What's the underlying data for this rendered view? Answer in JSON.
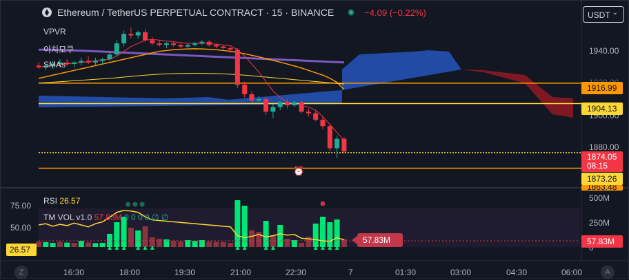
{
  "header": {
    "symbol_title": "Ethereum / TetherUS PERPETUAL CONTRACT · 15 · BINANCE",
    "change": "−4.09 (−0.22%)",
    "currency": "USDT"
  },
  "indicators": {
    "vpvr": "VPVR",
    "ichimoku": "이치모쿠",
    "smas": "SMAs"
  },
  "price_axis": {
    "ticks": [
      "1940.00",
      "1920.00",
      "1900.00",
      "1880.00"
    ],
    "tag_orange_top": "1916.99",
    "tag_yellow": "1904.13",
    "tag_last_price": "1874.05",
    "tag_countdown": "08:15",
    "tag_yellow_bottom": "1873.26",
    "tag_partial": "1863.48"
  },
  "rsi": {
    "label": "RSI",
    "value": "26.57",
    "axis_ticks": [
      "75.00",
      "50.00"
    ],
    "left_tag": "26.57"
  },
  "volume": {
    "label": "TM VOL v1.0",
    "value": "57.83M",
    "zeros": "0 0 0 0 ∅ ∅",
    "axis_ticks": [
      "500M",
      "250M",
      "0"
    ],
    "badge": "57.83M",
    "tag": "57.83M"
  },
  "time_axis": [
    "16:30",
    "18:00",
    "19:30",
    "21:00",
    "22:30",
    "7",
    "01:30",
    "03:00",
    "04:30",
    "06:00"
  ],
  "buttons": {
    "left": "Z",
    "right": "A"
  },
  "colors": {
    "up": "#22ab94",
    "down": "#f23645",
    "cloud_bull": "#2351b3",
    "cloud_bear": "#8b1a24",
    "sma_purple": "#7e57c2",
    "sma_orange": "#ff9800",
    "level_yellow": "#fdd835",
    "rsi_line": "#fdd835",
    "vol_up": "#00e676"
  },
  "chart_data": {
    "type": "candlestick",
    "xlabel": "",
    "ylabel": "",
    "ylim": [
      1852,
      1955
    ],
    "levels": [
      1916.99,
      1904.13,
      1873.26,
      1863.48
    ],
    "candles": [
      {
        "o": 1928,
        "h": 1930,
        "l": 1926,
        "c": 1927
      },
      {
        "o": 1927,
        "h": 1929,
        "l": 1925,
        "c": 1928
      },
      {
        "o": 1928,
        "h": 1931,
        "l": 1926,
        "c": 1929
      },
      {
        "o": 1929,
        "h": 1932,
        "l": 1927,
        "c": 1930
      },
      {
        "o": 1930,
        "h": 1932,
        "l": 1928,
        "c": 1929
      },
      {
        "o": 1929,
        "h": 1931,
        "l": 1927,
        "c": 1930
      },
      {
        "o": 1930,
        "h": 1933,
        "l": 1928,
        "c": 1931
      },
      {
        "o": 1931,
        "h": 1934,
        "l": 1929,
        "c": 1930
      },
      {
        "o": 1930,
        "h": 1933,
        "l": 1928,
        "c": 1931
      },
      {
        "o": 1931,
        "h": 1933,
        "l": 1929,
        "c": 1932
      },
      {
        "o": 1932,
        "h": 1936,
        "l": 1931,
        "c": 1935
      },
      {
        "o": 1935,
        "h": 1944,
        "l": 1934,
        "c": 1942
      },
      {
        "o": 1942,
        "h": 1950,
        "l": 1940,
        "c": 1948
      },
      {
        "o": 1948,
        "h": 1952,
        "l": 1945,
        "c": 1947
      },
      {
        "o": 1947,
        "h": 1950,
        "l": 1945,
        "c": 1949
      },
      {
        "o": 1949,
        "h": 1951,
        "l": 1943,
        "c": 1944
      },
      {
        "o": 1944,
        "h": 1946,
        "l": 1941,
        "c": 1942
      },
      {
        "o": 1942,
        "h": 1944,
        "l": 1940,
        "c": 1941
      },
      {
        "o": 1941,
        "h": 1943,
        "l": 1939,
        "c": 1942
      },
      {
        "o": 1942,
        "h": 1943,
        "l": 1940,
        "c": 1941
      },
      {
        "o": 1941,
        "h": 1942,
        "l": 1939,
        "c": 1940
      },
      {
        "o": 1940,
        "h": 1942,
        "l": 1939,
        "c": 1941
      },
      {
        "o": 1941,
        "h": 1943,
        "l": 1940,
        "c": 1942
      },
      {
        "o": 1942,
        "h": 1944,
        "l": 1941,
        "c": 1943
      },
      {
        "o": 1943,
        "h": 1944,
        "l": 1940,
        "c": 1941
      },
      {
        "o": 1941,
        "h": 1942,
        "l": 1939,
        "c": 1940
      },
      {
        "o": 1940,
        "h": 1941,
        "l": 1938,
        "c": 1939
      },
      {
        "o": 1939,
        "h": 1940,
        "l": 1936,
        "c": 1938
      },
      {
        "o": 1938,
        "h": 1939,
        "l": 1914,
        "c": 1916
      },
      {
        "o": 1916,
        "h": 1918,
        "l": 1908,
        "c": 1910
      },
      {
        "o": 1910,
        "h": 1912,
        "l": 1905,
        "c": 1906
      },
      {
        "o": 1906,
        "h": 1909,
        "l": 1904,
        "c": 1907
      },
      {
        "o": 1907,
        "h": 1908,
        "l": 1897,
        "c": 1899
      },
      {
        "o": 1899,
        "h": 1904,
        "l": 1895,
        "c": 1902
      },
      {
        "o": 1902,
        "h": 1906,
        "l": 1900,
        "c": 1905
      },
      {
        "o": 1905,
        "h": 1907,
        "l": 1901,
        "c": 1903
      },
      {
        "o": 1903,
        "h": 1906,
        "l": 1902,
        "c": 1905
      },
      {
        "o": 1905,
        "h": 1906,
        "l": 1898,
        "c": 1899
      },
      {
        "o": 1899,
        "h": 1901,
        "l": 1896,
        "c": 1898
      },
      {
        "o": 1898,
        "h": 1900,
        "l": 1893,
        "c": 1894
      },
      {
        "o": 1894,
        "h": 1896,
        "l": 1888,
        "c": 1890
      },
      {
        "o": 1890,
        "h": 1891,
        "l": 1874,
        "c": 1876
      },
      {
        "o": 1876,
        "h": 1884,
        "l": 1870,
        "c": 1882
      },
      {
        "o": 1882,
        "h": 1883,
        "l": 1873,
        "c": 1874
      }
    ],
    "rsi": [
      50,
      52,
      48,
      51,
      49,
      53,
      50,
      47,
      52,
      55,
      62,
      70,
      73,
      72,
      70,
      63,
      58,
      57,
      56,
      55,
      54,
      53,
      52,
      51,
      50,
      49,
      48,
      47,
      33,
      30,
      32,
      35,
      31,
      33,
      36,
      34,
      35,
      29,
      28,
      27,
      25,
      24,
      30,
      26.57
    ],
    "volume": [
      {
        "v": 40,
        "up": false
      },
      {
        "v": 35,
        "up": true
      },
      {
        "v": 30,
        "up": true
      },
      {
        "v": 38,
        "up": false
      },
      {
        "v": 32,
        "up": true
      },
      {
        "v": 30,
        "up": false
      },
      {
        "v": 45,
        "up": true
      },
      {
        "v": 33,
        "up": false
      },
      {
        "v": 28,
        "up": true
      },
      {
        "v": 30,
        "up": true
      },
      {
        "v": 95,
        "up": true
      },
      {
        "v": 180,
        "up": true
      },
      {
        "v": 220,
        "up": true
      },
      {
        "v": 140,
        "up": false
      },
      {
        "v": 120,
        "up": true
      },
      {
        "v": 150,
        "up": false
      },
      {
        "v": 70,
        "up": false
      },
      {
        "v": 60,
        "up": false
      },
      {
        "v": 55,
        "up": true
      },
      {
        "v": 45,
        "up": false
      },
      {
        "v": 40,
        "up": false
      },
      {
        "v": 50,
        "up": true
      },
      {
        "v": 45,
        "up": true
      },
      {
        "v": 50,
        "up": true
      },
      {
        "v": 40,
        "up": false
      },
      {
        "v": 38,
        "up": false
      },
      {
        "v": 35,
        "up": false
      },
      {
        "v": 30,
        "up": false
      },
      {
        "v": 340,
        "up": true
      },
      {
        "v": 300,
        "up": true
      },
      {
        "v": 120,
        "up": false
      },
      {
        "v": 110,
        "up": false
      },
      {
        "v": 190,
        "up": true
      },
      {
        "v": 85,
        "up": false
      },
      {
        "v": 160,
        "up": true
      },
      {
        "v": 60,
        "up": false
      },
      {
        "v": 50,
        "up": true
      },
      {
        "v": 30,
        "up": false
      },
      {
        "v": 75,
        "up": false
      },
      {
        "v": 170,
        "up": true
      },
      {
        "v": 220,
        "up": true
      },
      {
        "v": 180,
        "up": true
      },
      {
        "v": 200,
        "up": true
      },
      {
        "v": 58,
        "up": false
      }
    ],
    "sma_purple": [
      1938,
      1938,
      1938,
      1937.8,
      1937.6,
      1937.5,
      1937.4,
      1937.2,
      1937,
      1936.8,
      1936.6,
      1936.4,
      1936.2,
      1936,
      1935.8,
      1935.6,
      1935.4,
      1935.2,
      1935,
      1934.8,
      1934.6,
      1934.4,
      1934.2,
      1934,
      1933.8,
      1933.6,
      1933.4,
      1933.2,
      1933,
      1932.8,
      1932.6,
      1932.4,
      1932.2,
      1932,
      1931.8,
      1931.6,
      1931.4,
      1931.2,
      1931,
      1930.8,
      1930.6,
      1930.4,
      1930.2,
      1930
    ],
    "sma_orange": [
      1920,
      1921,
      1922,
      1923,
      1924,
      1925,
      1926,
      1927,
      1928,
      1929,
      1930,
      1931,
      1932,
      1933,
      1934,
      1935,
      1936,
      1937,
      1937.5,
      1938,
      1938.3,
      1938.5,
      1938.6,
      1938.5,
      1938.3,
      1938,
      1937.5,
      1937,
      1936.3,
      1935.5,
      1934.5,
      1933.5,
      1932.4,
      1931.3,
      1930.2,
      1929,
      1927.8,
      1926.5,
      1925,
      1923.5,
      1922,
      1920,
      1917.5,
      1913
    ],
    "sma_yellow": [
      1917,
      1917.3,
      1917.6,
      1917.9,
      1918.2,
      1918.5,
      1918.8,
      1919.1,
      1919.4,
      1919.7,
      1920,
      1920.4,
      1920.8,
      1921.2,
      1921.6,
      1922,
      1922.3,
      1922.6,
      1922.8,
      1923,
      1923.1,
      1923.2,
      1923.2,
      1923.2,
      1923.1,
      1923,
      1922.8,
      1922.6,
      1922.3,
      1922,
      1921.6,
      1921.2,
      1920.8,
      1920.4,
      1920,
      1919.6,
      1919.2,
      1918.8,
      1918.4,
      1918,
      1917.6,
      1917.2,
      1916.8,
      1916.4
    ],
    "sma_red": [
      1927,
      1927.5,
      1928,
      1928.5,
      1929,
      1929.5,
      1930,
      1930.5,
      1931,
      1931.5,
      1932,
      1934,
      1937,
      1940,
      1942,
      1944,
      1944.5,
      1944,
      1943.5,
      1943,
      1942.5,
      1942,
      1942,
      1942,
      1942,
      1941.5,
      1941,
      1940.5,
      1938,
      1934,
      1929,
      1924,
      1918,
      1912,
      1908,
      1905,
      1904,
      1903,
      1902,
      1900,
      1896,
      1891,
      1886,
      1881
    ]
  }
}
